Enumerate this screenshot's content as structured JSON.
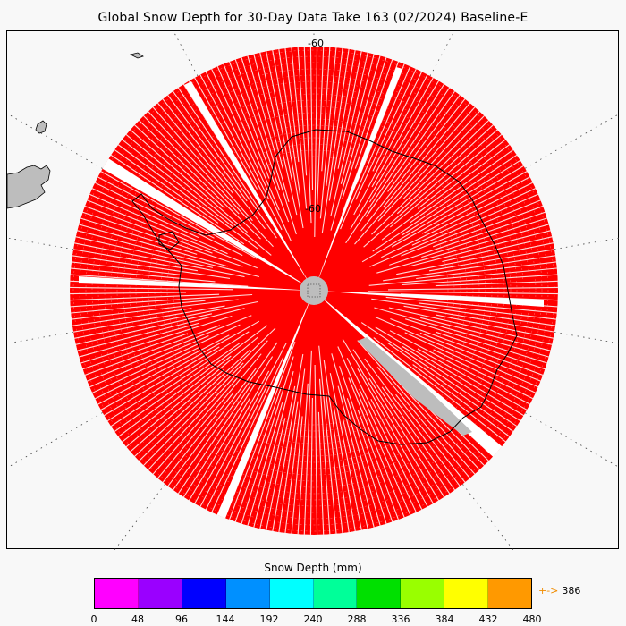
{
  "title": "Global Snow Depth for 30-Day Data Take 163 (02/2024) Baseline-E",
  "map": {
    "projection": "south polar stereographic",
    "lat_labels": [
      "-60",
      "-60"
    ],
    "pole_hole_color": "#bdbdbd",
    "data_color": "#ff0000",
    "land_color": "#bdbdbd",
    "missing_color": "#bdbdbd",
    "background_color": "#f8f8f8"
  },
  "colorbar": {
    "title": "Snow Depth (mm)",
    "ticks": [
      "0",
      "48",
      "96",
      "144",
      "192",
      "240",
      "288",
      "336",
      "384",
      "432",
      "480"
    ],
    "colors": [
      "#ff00ff",
      "#9a00ff",
      "#0000ff",
      "#0090ff",
      "#00ffff",
      "#00ff99",
      "#00e000",
      "#99ff00",
      "#ffff00",
      "#ff9900"
    ],
    "max_value": "386",
    "max_arrow": "+->",
    "max_arrow_color": "#f08c00"
  }
}
